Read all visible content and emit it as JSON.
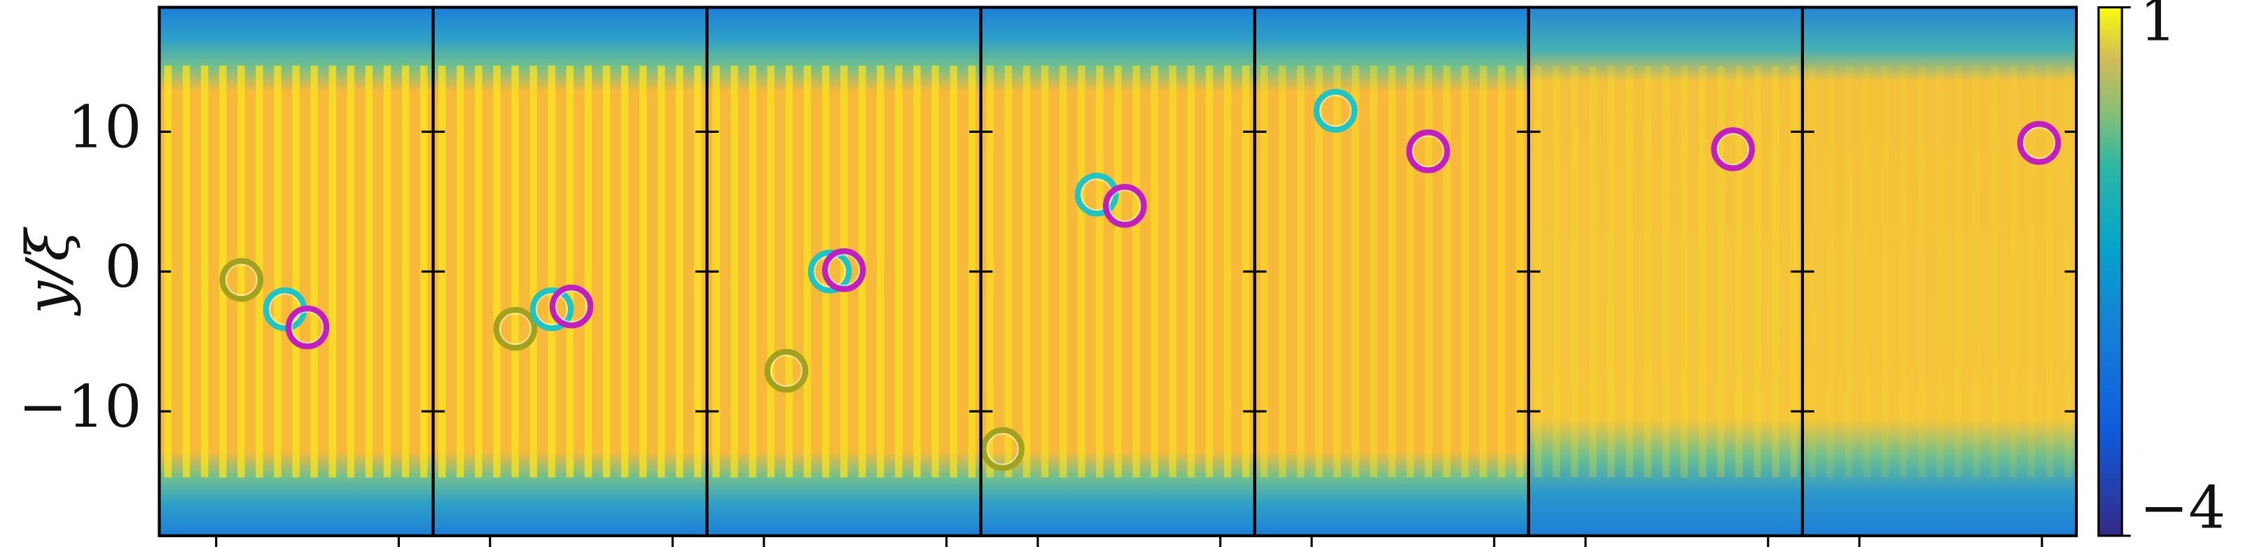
{
  "chart_data": {
    "type": "scatter",
    "ylabel": "y/ξ",
    "ylim": [
      -18.9,
      18.9
    ],
    "yticks": [
      10,
      0,
      {
        "value": -10,
        "label": "−10"
      }
    ],
    "xlim": [
      -9.75,
      9.75
    ],
    "xticks": [
      -5.7,
      7.3
    ],
    "colorbar": {
      "clim": [
        -4,
        1
      ],
      "ticks": [
        1,
        {
          "value": -4,
          "label": "−4"
        }
      ]
    },
    "panels": [
      {
        "points": [
          {
            "color": "#a3a21e",
            "x": -3.9,
            "y": -0.6
          },
          {
            "color": "#1fc4c4",
            "x": -0.8,
            "y": -2.7
          },
          {
            "color": "#c21fc2",
            "x": 0.8,
            "y": -4.0
          }
        ]
      },
      {
        "points": [
          {
            "color": "#a3a21e",
            "x": -3.9,
            "y": -4.1
          },
          {
            "color": "#1fc4c4",
            "x": -1.3,
            "y": -2.7
          },
          {
            "color": "#c21fc2",
            "x": 0.1,
            "y": -2.5
          }
        ]
      },
      {
        "points": [
          {
            "color": "#a3a21e",
            "x": -4.1,
            "y": -7.1
          },
          {
            "color": "#1fc4c4",
            "x": -1.0,
            "y": 0.0
          },
          {
            "color": "#c21fc2",
            "x": 0.0,
            "y": 0.1
          }
        ]
      },
      {
        "points": [
          {
            "color": "#a3a21e",
            "x": -8.2,
            "y": -12.7
          },
          {
            "color": "#1fc4c4",
            "x": -1.5,
            "y": 5.5
          },
          {
            "color": "#c21fc2",
            "x": 0.5,
            "y": 4.7
          }
        ]
      },
      {
        "points": [
          {
            "color": "#1fc4c4",
            "x": -4.0,
            "y": 11.5
          },
          {
            "color": "#c21fc2",
            "x": 2.6,
            "y": 8.6
          }
        ]
      },
      {
        "points": [
          {
            "color": "#c21fc2",
            "x": 4.8,
            "y": 8.75
          }
        ]
      },
      {
        "points": [
          {
            "color": "#c21fc2",
            "x": 7.1,
            "y": 9.2
          }
        ]
      }
    ]
  }
}
